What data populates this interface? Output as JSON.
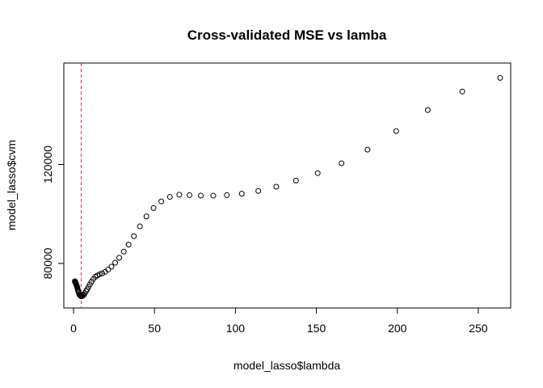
{
  "chart_data": {
    "type": "scatter",
    "title": "Cross-validated MSE vs lamba",
    "xlabel": "model_lasso$lambda",
    "ylabel": "model_lasso$cvm",
    "xlim": [
      -6,
      270
    ],
    "ylim": [
      62000,
      161000
    ],
    "x_ticks": [
      0,
      50,
      100,
      150,
      200,
      250
    ],
    "y_ticks": [
      80000,
      120000
    ],
    "grid": false,
    "legend": "none",
    "vline": {
      "x": 4.7,
      "color": "#e0304a",
      "style": "dashed"
    },
    "point_color": "#000000",
    "points": [
      [
        263.5,
        155000
      ],
      [
        240.1,
        149500
      ],
      [
        218.8,
        142000
      ],
      [
        199.3,
        133500
      ],
      [
        181.6,
        126000
      ],
      [
        165.5,
        120500
      ],
      [
        150.8,
        116500
      ],
      [
        137.4,
        113500
      ],
      [
        125.2,
        111000
      ],
      [
        114.1,
        109300
      ],
      [
        103.9,
        108200
      ],
      [
        94.7,
        107600
      ],
      [
        86.3,
        107400
      ],
      [
        78.6,
        107400
      ],
      [
        71.6,
        107600
      ],
      [
        65.3,
        107800
      ],
      [
        59.5,
        106900
      ],
      [
        54.2,
        105100
      ],
      [
        49.4,
        102400
      ],
      [
        45.0,
        99000
      ],
      [
        41.0,
        95000
      ],
      [
        37.3,
        91000
      ],
      [
        34.0,
        87600
      ],
      [
        31.0,
        84800
      ],
      [
        28.2,
        82300
      ],
      [
        25.7,
        80300
      ],
      [
        23.4,
        78700
      ],
      [
        21.4,
        77500
      ],
      [
        19.5,
        76600
      ],
      [
        17.7,
        76000
      ],
      [
        16.1,
        75600
      ],
      [
        14.7,
        75100
      ],
      [
        13.4,
        74600
      ],
      [
        12.2,
        73700
      ],
      [
        11.1,
        72600
      ],
      [
        10.1,
        71500
      ],
      [
        9.2,
        70500
      ],
      [
        8.4,
        69500
      ],
      [
        7.7,
        68800
      ],
      [
        7.0,
        68000
      ],
      [
        6.4,
        67400
      ],
      [
        5.8,
        67000
      ],
      [
        5.3,
        66800
      ],
      [
        4.8,
        66700
      ],
      [
        4.4,
        66800
      ],
      [
        4.0,
        67100
      ],
      [
        3.6,
        67500
      ],
      [
        3.3,
        68000
      ],
      [
        3.0,
        68600
      ],
      [
        2.7,
        69200
      ],
      [
        2.5,
        69800
      ],
      [
        2.3,
        70300
      ],
      [
        2.1,
        70700
      ],
      [
        1.9,
        71100
      ],
      [
        1.7,
        71400
      ],
      [
        1.6,
        71700
      ],
      [
        1.4,
        71900
      ],
      [
        1.3,
        72100
      ],
      [
        1.2,
        72300
      ],
      [
        1.1,
        72400
      ],
      [
        1.0,
        72600
      ],
      [
        0.9,
        72700
      ],
      [
        0.8,
        72800
      ]
    ]
  }
}
